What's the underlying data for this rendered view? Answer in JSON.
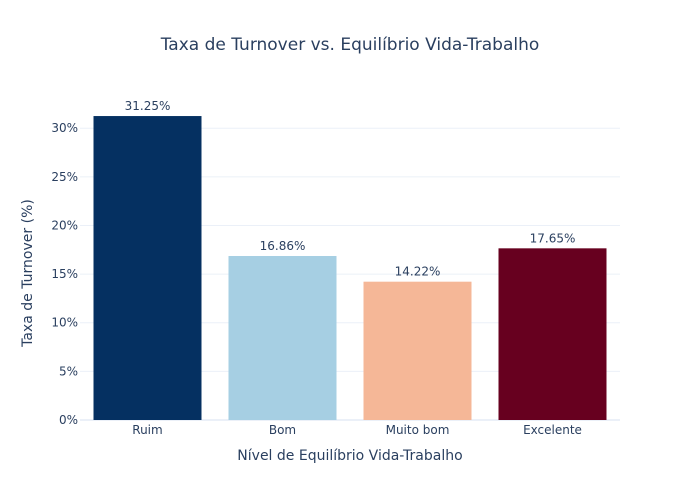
{
  "chart_data": {
    "type": "bar",
    "title": "Taxa de Turnover vs. Equilíbrio Vida-Trabalho",
    "xlabel": "Nível de Equilíbrio Vida-Trabalho",
    "ylabel": "Taxa de Turnover (%)",
    "categories": [
      "Ruim",
      "Bom",
      "Muito bom",
      "Excelente"
    ],
    "values": [
      31.25,
      16.86,
      14.22,
      17.65
    ],
    "data_labels": [
      "31.25%",
      "16.86%",
      "14.22%",
      "17.65%"
    ],
    "colors": [
      "#053061",
      "#a6cfe3",
      "#f5b797",
      "#67001f"
    ],
    "ylim": [
      0,
      32.9
    ],
    "yticks": [
      0,
      5,
      10,
      15,
      20,
      25,
      30
    ],
    "ytick_labels": [
      "0%",
      "5%",
      "10%",
      "15%",
      "20%",
      "25%",
      "30%"
    ],
    "grid": true,
    "legend": false
  }
}
